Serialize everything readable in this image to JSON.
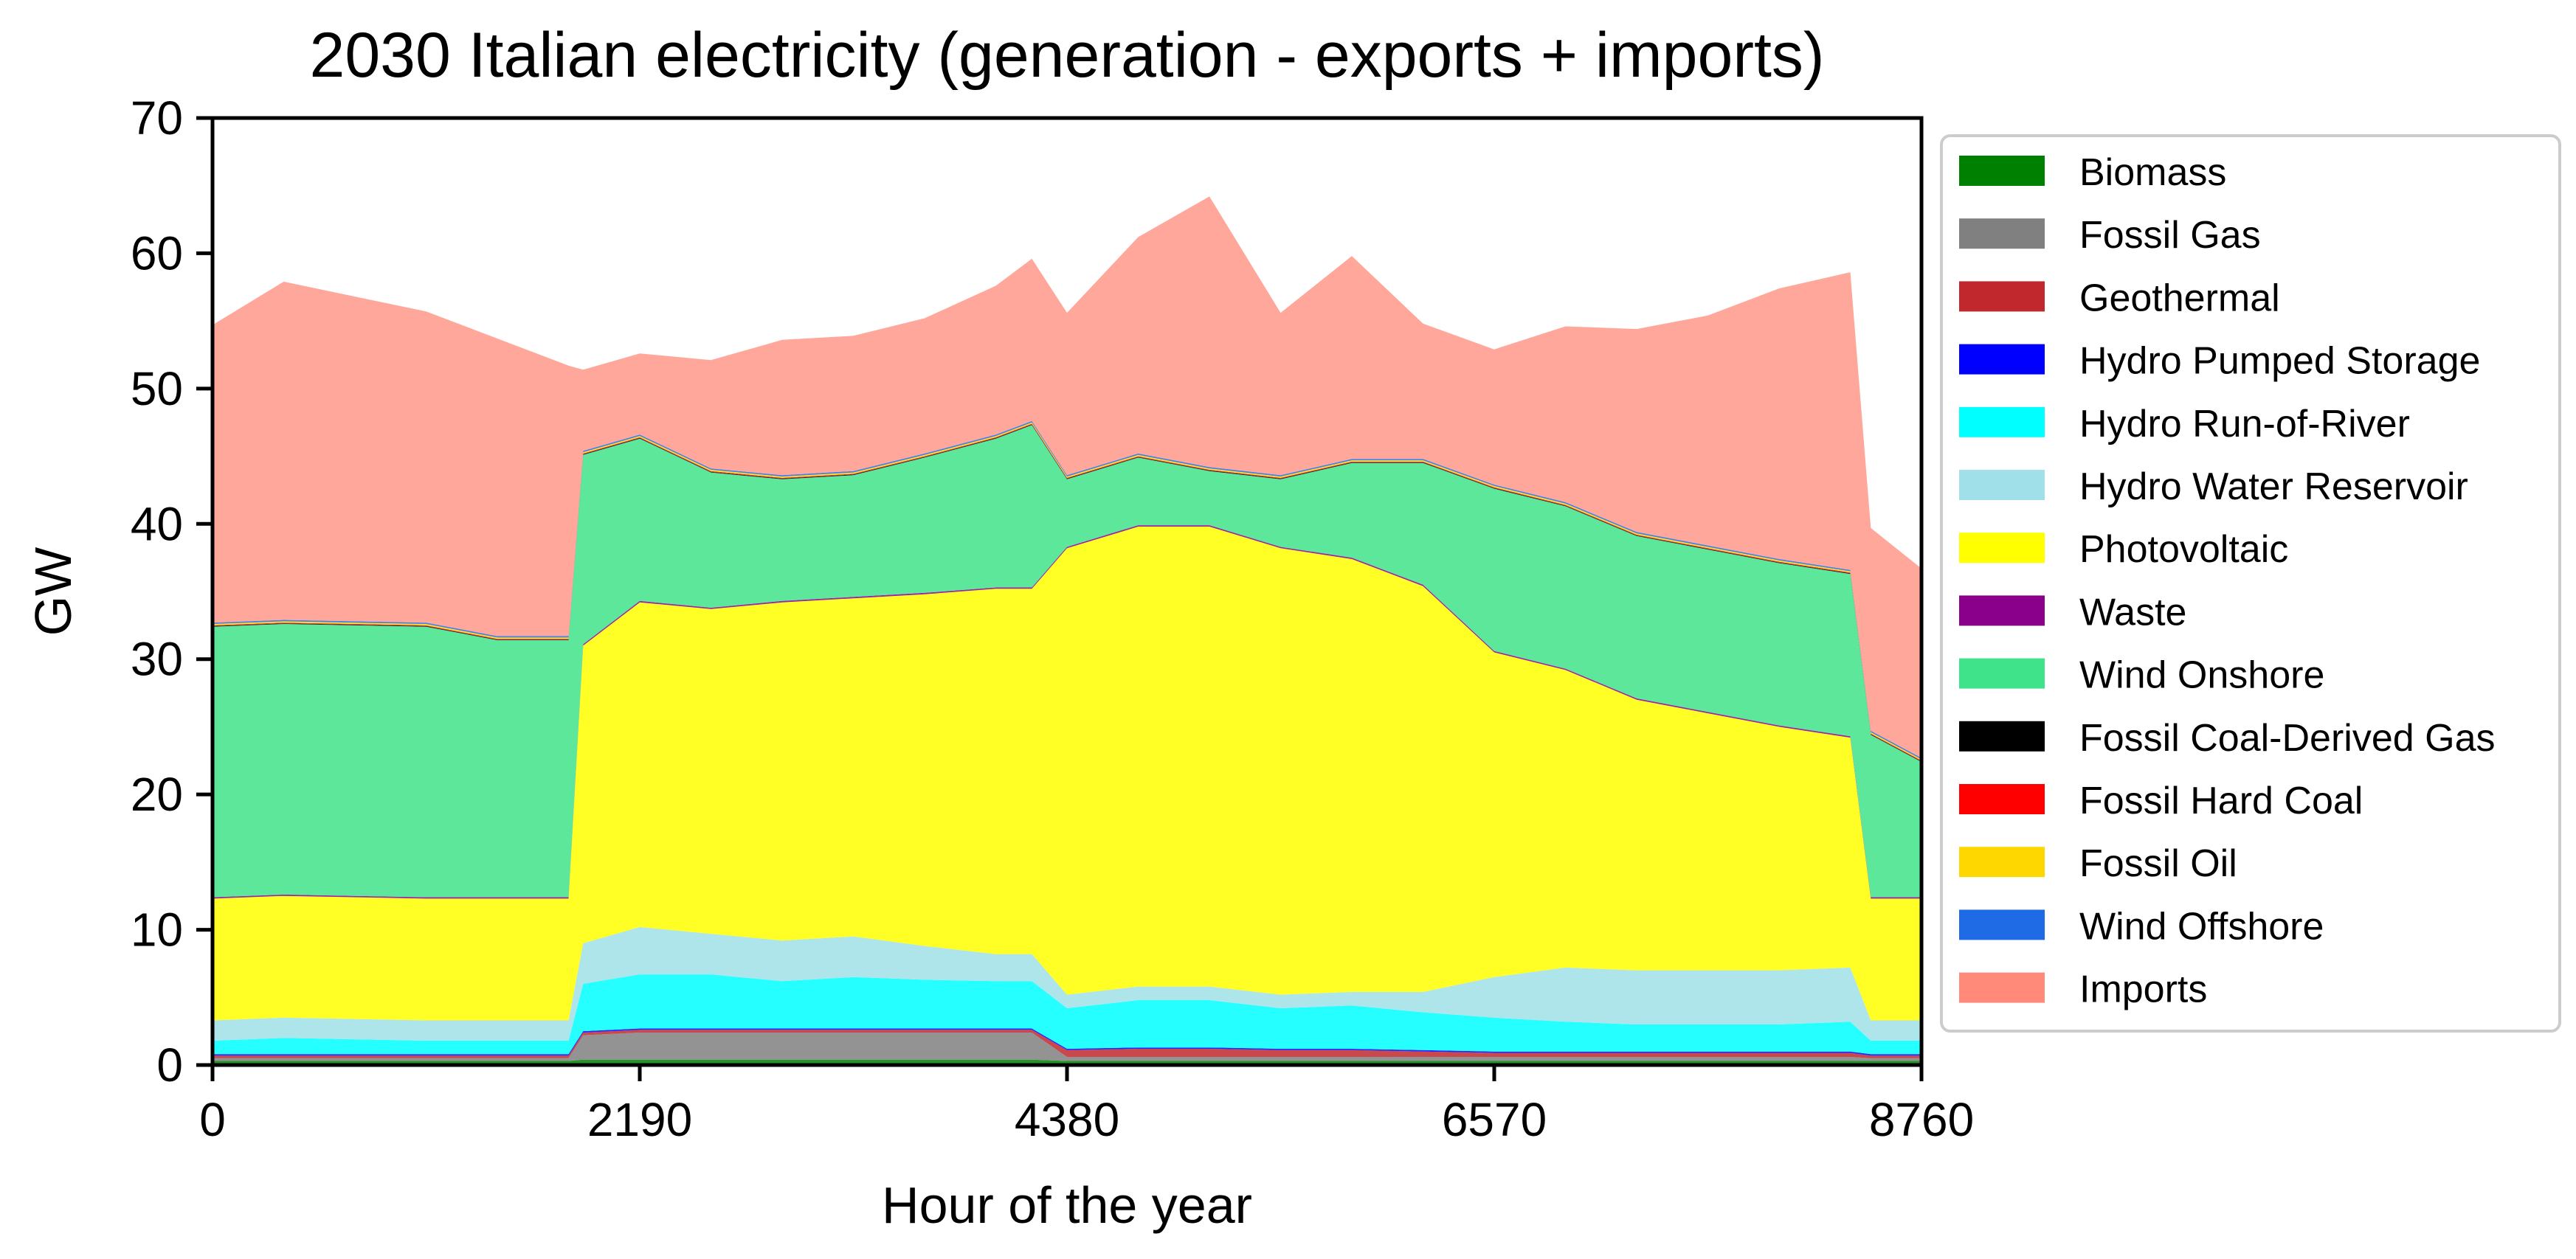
{
  "chart_data": {
    "type": "area",
    "stacked": true,
    "title": "2030 Italian electricity (generation - exports + imports)",
    "xlabel": "Hour of the year",
    "ylabel": "GW",
    "xlim": [
      0,
      8760
    ],
    "ylim": [
      0,
      70
    ],
    "xticks": [
      0,
      2190,
      4380,
      6570,
      8760
    ],
    "yticks": [
      0,
      10,
      20,
      30,
      40,
      50,
      60,
      70
    ],
    "legend_position": "outside-right",
    "x": [
      0,
      365,
      730,
      1095,
      1460,
      1825,
      1900,
      2190,
      2555,
      2920,
      3285,
      3650,
      4015,
      4200,
      4380,
      4745,
      5110,
      5475,
      5840,
      6205,
      6570,
      6935,
      7300,
      7665,
      8030,
      8395,
      8500,
      8760
    ],
    "series": [
      {
        "name": "Biomass",
        "color": "#008000",
        "values": [
          0.3,
          0.3,
          0.3,
          0.3,
          0.3,
          0.3,
          0.4,
          0.4,
          0.4,
          0.4,
          0.4,
          0.4,
          0.4,
          0.4,
          0.3,
          0.3,
          0.3,
          0.3,
          0.3,
          0.3,
          0.3,
          0.3,
          0.3,
          0.3,
          0.3,
          0.3,
          0.3,
          0.3
        ]
      },
      {
        "name": "Fossil Gas",
        "color": "#808080",
        "values": [
          0.2,
          0.2,
          0.2,
          0.2,
          0.2,
          0.2,
          1.8,
          2.0,
          2.0,
          2.0,
          2.0,
          2.0,
          2.0,
          2.0,
          0.3,
          0.3,
          0.3,
          0.3,
          0.3,
          0.3,
          0.3,
          0.3,
          0.3,
          0.3,
          0.3,
          0.3,
          0.2,
          0.2
        ]
      },
      {
        "name": "Geothermal",
        "color": "#c0282d",
        "values": [
          0.2,
          0.2,
          0.2,
          0.2,
          0.2,
          0.2,
          0.2,
          0.2,
          0.2,
          0.2,
          0.2,
          0.2,
          0.2,
          0.2,
          0.5,
          0.6,
          0.6,
          0.5,
          0.5,
          0.4,
          0.3,
          0.3,
          0.3,
          0.3,
          0.3,
          0.3,
          0.2,
          0.2
        ]
      },
      {
        "name": "Hydro Pumped Storage",
        "color": "#0000ff",
        "values": [
          0.1,
          0.1,
          0.1,
          0.1,
          0.1,
          0.1,
          0.1,
          0.1,
          0.1,
          0.1,
          0.1,
          0.1,
          0.1,
          0.1,
          0.1,
          0.1,
          0.1,
          0.1,
          0.1,
          0.1,
          0.1,
          0.1,
          0.1,
          0.1,
          0.1,
          0.1,
          0.1,
          0.1
        ]
      },
      {
        "name": "Hydro Run-of-River",
        "color": "#00ffff",
        "values": [
          1.0,
          1.2,
          1.1,
          1.0,
          1.0,
          1.0,
          3.5,
          4.0,
          4.0,
          3.5,
          3.8,
          3.6,
          3.5,
          3.5,
          3.0,
          3.5,
          3.5,
          3.0,
          3.2,
          2.8,
          2.5,
          2.2,
          2.0,
          2.0,
          2.0,
          2.2,
          1.0,
          1.0
        ]
      },
      {
        "name": "Hydro Water Reservoir",
        "color": "#a0e0e8",
        "values": [
          1.5,
          1.5,
          1.5,
          1.5,
          1.5,
          1.5,
          3.0,
          3.5,
          3.0,
          3.0,
          3.0,
          2.5,
          2.0,
          2.0,
          1.0,
          1.0,
          1.0,
          1.0,
          1.0,
          1.5,
          3.0,
          4.0,
          4.0,
          4.0,
          4.0,
          4.0,
          1.5,
          1.5
        ]
      },
      {
        "name": "Photovoltaic",
        "color": "#ffff00",
        "values": [
          9,
          9,
          9,
          9,
          9,
          9,
          22,
          24,
          24,
          25,
          25,
          26,
          27,
          27,
          33,
          34,
          34,
          33,
          32,
          30,
          24,
          22,
          20,
          19,
          18,
          17,
          9,
          9
        ]
      },
      {
        "name": "Waste",
        "color": "#8b008b",
        "values": [
          0.1,
          0.1,
          0.1,
          0.1,
          0.1,
          0.1,
          0.1,
          0.1,
          0.1,
          0.1,
          0.1,
          0.1,
          0.1,
          0.1,
          0.1,
          0.1,
          0.1,
          0.1,
          0.1,
          0.1,
          0.1,
          0.1,
          0.1,
          0.1,
          0.1,
          0.1,
          0.1,
          0.1
        ]
      },
      {
        "name": "Wind Onshore",
        "color": "#3fe38a",
        "values": [
          20,
          20,
          20,
          20,
          19,
          19,
          14,
          12,
          10,
          9,
          9,
          10,
          11,
          12,
          5,
          5,
          4,
          5,
          7,
          9,
          12,
          12,
          12,
          12,
          12,
          12,
          12,
          10
        ]
      },
      {
        "name": "Fossil Coal-Derived Gas",
        "color": "#000000",
        "values": [
          0.05,
          0.05,
          0.05,
          0.05,
          0.05,
          0.05,
          0.05,
          0.05,
          0.05,
          0.05,
          0.05,
          0.05,
          0.05,
          0.05,
          0.05,
          0.05,
          0.05,
          0.05,
          0.05,
          0.05,
          0.05,
          0.05,
          0.05,
          0.05,
          0.05,
          0.05,
          0.05,
          0.05
        ]
      },
      {
        "name": "Fossil Hard Coal",
        "color": "#ff0000",
        "values": [
          0.05,
          0.05,
          0.05,
          0.05,
          0.05,
          0.05,
          0.05,
          0.05,
          0.05,
          0.05,
          0.05,
          0.05,
          0.05,
          0.05,
          0.05,
          0.05,
          0.05,
          0.05,
          0.05,
          0.05,
          0.05,
          0.05,
          0.05,
          0.05,
          0.05,
          0.05,
          0.05,
          0.05
        ]
      },
      {
        "name": "Fossil Oil",
        "color": "#ffd700",
        "values": [
          0.1,
          0.1,
          0.1,
          0.1,
          0.1,
          0.1,
          0.1,
          0.1,
          0.1,
          0.1,
          0.1,
          0.1,
          0.1,
          0.1,
          0.1,
          0.1,
          0.1,
          0.1,
          0.1,
          0.1,
          0.1,
          0.1,
          0.1,
          0.1,
          0.1,
          0.1,
          0.1,
          0.1
        ]
      },
      {
        "name": "Wind Offshore",
        "color": "#1f6be6",
        "values": [
          0.1,
          0.1,
          0.1,
          0.1,
          0.1,
          0.1,
          0.1,
          0.1,
          0.1,
          0.1,
          0.1,
          0.1,
          0.1,
          0.1,
          0.1,
          0.1,
          0.1,
          0.1,
          0.1,
          0.1,
          0.1,
          0.1,
          0.1,
          0.1,
          0.1,
          0.1,
          0.1,
          0.1
        ]
      },
      {
        "name": "Imports",
        "color": "#ff8a7a",
        "values": [
          22,
          25,
          24,
          23,
          22,
          20,
          6,
          6,
          8,
          10,
          10,
          10,
          11,
          12,
          12,
          16,
          20,
          12,
          15,
          10,
          10,
          13,
          15,
          17,
          20,
          22,
          15,
          14
        ]
      }
    ]
  }
}
